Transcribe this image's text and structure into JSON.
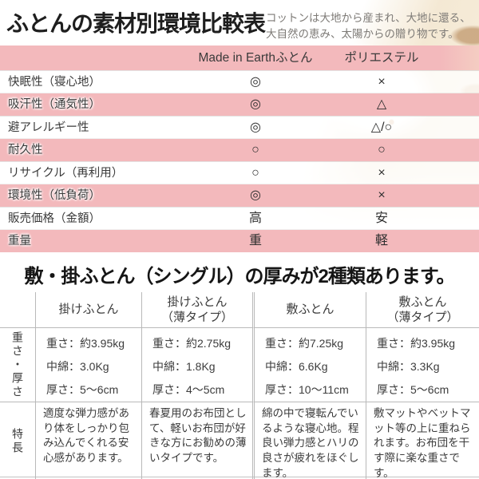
{
  "header": {
    "title": "ふとんの素材別環境比較表",
    "subtitle_line1": "コットンは大地から産まれ、大地に還る、",
    "subtitle_line2": "大自然の恵み、太陽からの贈り物です。"
  },
  "colors": {
    "accent_pink": "#f3b9bc",
    "table_border_gray": "#b9b9b9"
  },
  "comparison_table": {
    "columns": [
      "Made in Earthふとん",
      "ポリエステル"
    ],
    "rows": [
      {
        "label": "快眠性（寝心地）",
        "made_in_earth": "◎",
        "polyester": "×"
      },
      {
        "label": "吸汗性（通気性）",
        "made_in_earth": "◎",
        "polyester": "△"
      },
      {
        "label": "避アレルギー性",
        "made_in_earth": "◎",
        "polyester": "△/○"
      },
      {
        "label": "耐久性",
        "made_in_earth": "○",
        "polyester": "○"
      },
      {
        "label": "リサイクル（再利用）",
        "made_in_earth": "○",
        "polyester": "×"
      },
      {
        "label": "環境性（低負荷）",
        "made_in_earth": "◎",
        "polyester": "×"
      },
      {
        "label": "販売価格（金額）",
        "made_in_earth": "高",
        "polyester": "安"
      },
      {
        "label": "重量",
        "made_in_earth": "重",
        "polyester": "軽"
      }
    ]
  },
  "thickness": {
    "title": "敷・掛ふとん（シングル）の厚みが2種類あります。",
    "row_labels": {
      "spec": "重さ・厚さ",
      "feature": "特長"
    },
    "columns": [
      {
        "label": "掛けふとん",
        "sub": ""
      },
      {
        "label": "掛けふとん",
        "sub": "（薄タイプ）"
      },
      {
        "label": "敷ふとん",
        "sub": ""
      },
      {
        "label": "敷ふとん",
        "sub": "（薄タイプ）"
      }
    ],
    "specs": [
      {
        "weight": "重さ：約3.95kg",
        "filling": "中綿：3.0Kg",
        "thickness": "厚さ：5～6cm"
      },
      {
        "weight": "重さ：約2.75kg",
        "filling": "中綿：1.8Kg",
        "thickness": "厚さ：4～5cm"
      },
      {
        "weight": "重さ：約7.25kg",
        "filling": "中綿：6.6Kg",
        "thickness": "厚さ：10～11cm"
      },
      {
        "weight": "重さ：約3.95kg",
        "filling": "中綿：3.3Kg",
        "thickness": "厚さ：5～6cm"
      }
    ],
    "features": [
      "適度な弾力感があり体をしっかり包み込んでくれる安心感があります。",
      "春夏用のお布団として、軽いお布団が好きな方にお勧めの薄いタイプです。",
      "綿の中で寝転んでいるような寝心地。程良い弾力感とハリの良さが疲れをほぐします。",
      "敷マットやベットマット等の上に重ねられます。お布団を干す際に楽な重さです。"
    ]
  }
}
